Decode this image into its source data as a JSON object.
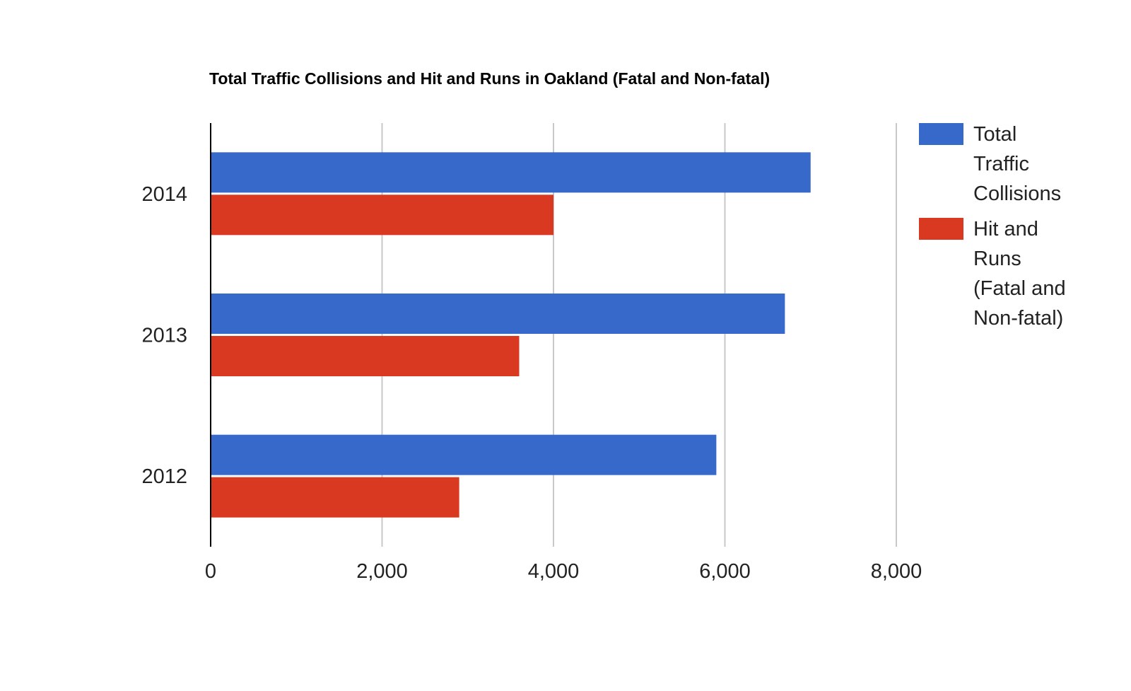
{
  "chart_data": {
    "type": "bar",
    "orientation": "horizontal",
    "title": "Total Traffic Collisions and Hit and Runs in Oakland (Fatal and Non-fatal)",
    "categories": [
      "2014",
      "2013",
      "2012"
    ],
    "series": [
      {
        "name": "Total Traffic Collisions",
        "color": "#3769CA",
        "values": [
          7000,
          6700,
          5900
        ]
      },
      {
        "name": "Hit and Runs (Fatal and Non-fatal)",
        "color": "#D93921",
        "values": [
          4000,
          3600,
          2900
        ]
      }
    ],
    "xlim": [
      0,
      8000
    ],
    "xticks": [
      "0",
      "2,000",
      "4,000",
      "6,000",
      "8,000"
    ],
    "xtick_values": [
      0,
      2000,
      4000,
      6000,
      8000
    ],
    "grid": true,
    "legend_position": "right",
    "legend_lines": [
      [
        "Total",
        "Traffic",
        "Collisions"
      ],
      [
        "Hit and",
        "Runs",
        "(Fatal and",
        "Non-fatal)"
      ]
    ]
  }
}
